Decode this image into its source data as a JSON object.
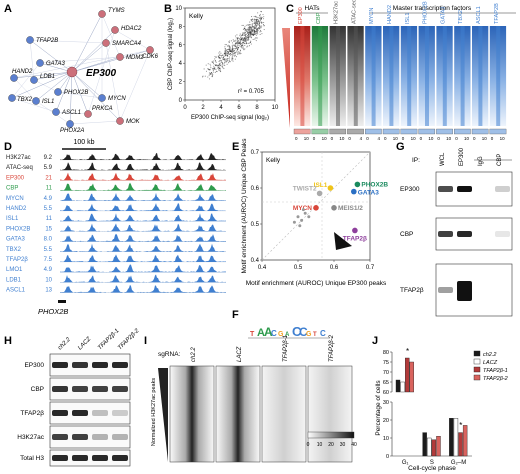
{
  "panel_letters": [
    "A",
    "B",
    "C",
    "D",
    "E",
    "F",
    "G",
    "H",
    "I",
    "J"
  ],
  "network": {
    "center": "EP300",
    "nodes": [
      {
        "id": "TYMS",
        "color": "#cc6f7a"
      },
      {
        "id": "HDAC2",
        "color": "#cc6f7a"
      },
      {
        "id": "SMARCA4",
        "color": "#cc6f7a"
      },
      {
        "id": "MDM2",
        "color": "#cc6f7a"
      },
      {
        "id": "CDK6",
        "color": "#cc6f7a"
      },
      {
        "id": "TFAP2B",
        "color": "#5b7fcf"
      },
      {
        "id": "GATA3",
        "color": "#5b7fcf"
      },
      {
        "id": "HAND2",
        "color": "#5b7fcf"
      },
      {
        "id": "LDB1",
        "color": "#5b7fcf"
      },
      {
        "id": "TBX2",
        "color": "#5b7fcf"
      },
      {
        "id": "ISL1",
        "color": "#5b7fcf"
      },
      {
        "id": "PHOX2B",
        "color": "#5b7fcf"
      },
      {
        "id": "ASCL1",
        "color": "#5b7fcf"
      },
      {
        "id": "PHOX2A",
        "color": "#5b7fcf"
      },
      {
        "id": "MYCN",
        "color": "#5b7fcf"
      },
      {
        "id": "PRKCA",
        "color": "#cc6f7a"
      },
      {
        "id": "MOK",
        "color": "#cc6f7a"
      }
    ]
  },
  "scatter_b": {
    "label": "Kelly",
    "xlabel": "EP300 ChIP-seq signal (log₂)",
    "ylabel": "CBP ChIP-seq signal (log₂)",
    "r2": "r² = 0.705",
    "xticks": [
      "0",
      "2",
      "4",
      "6",
      "8",
      "10"
    ],
    "yticks": [
      "0",
      "2",
      "4",
      "6",
      "8",
      "10"
    ]
  },
  "heatmap_c": {
    "group_hats": "HATs",
    "group_mtf": "Master transcription factors",
    "columns": [
      {
        "name": "EP300",
        "color": "#d9463a",
        "min": "0",
        "max": "10"
      },
      {
        "name": "CBP",
        "color": "#2f9b4d",
        "min": "0",
        "max": "10"
      },
      {
        "name": "H3K27ac",
        "color": "#555555",
        "min": "0",
        "max": "10"
      },
      {
        "name": "ATAC-seq",
        "color": "#555555",
        "min": "0",
        "max": "4"
      },
      {
        "name": "MYCN",
        "color": "#3f7fd0",
        "min": "0",
        "max": "4"
      },
      {
        "name": "HAND2",
        "color": "#3f7fd0",
        "min": "0",
        "max": "10"
      },
      {
        "name": "ISL1",
        "color": "#3f7fd0",
        "min": "0",
        "max": "10"
      },
      {
        "name": "PHOX2B",
        "color": "#3f7fd0",
        "min": "0",
        "max": "10"
      },
      {
        "name": "GATA3",
        "color": "#3f7fd0",
        "min": "0",
        "max": "10"
      },
      {
        "name": "TBX2",
        "color": "#3f7fd0",
        "min": "0",
        "max": "10"
      },
      {
        "name": "ASCL1",
        "color": "#3f7fd0",
        "min": "0",
        "max": "10"
      },
      {
        "name": "TFAP2B",
        "color": "#3f7fd0",
        "min": "0",
        "max": "10"
      }
    ]
  },
  "tracks_d": {
    "scale": "100 kb",
    "gene": "PHOX2B",
    "tracks": [
      {
        "name": "H3K27ac",
        "value": "9.2",
        "color": "#222222"
      },
      {
        "name": "ATAC-seq",
        "value": "5.9",
        "color": "#222222"
      },
      {
        "name": "EP300",
        "value": "21",
        "color": "#d9463a"
      },
      {
        "name": "CBP",
        "value": "11",
        "color": "#2f9b4d"
      },
      {
        "name": "MYCN",
        "value": "4.9",
        "color": "#3f7fd0"
      },
      {
        "name": "HAND2",
        "value": "5.5",
        "color": "#3f7fd0"
      },
      {
        "name": "ISL1",
        "value": "11",
        "color": "#3f7fd0"
      },
      {
        "name": "PHOX2B",
        "value": "15",
        "color": "#3f7fd0"
      },
      {
        "name": "GATA3",
        "value": "8.0",
        "color": "#3f7fd0"
      },
      {
        "name": "TBX2",
        "value": "5.5",
        "color": "#3f7fd0"
      },
      {
        "name": "TFAP2β",
        "value": "7.5",
        "color": "#3f7fd0"
      },
      {
        "name": "LMO1",
        "value": "4.9",
        "color": "#3f7fd0"
      },
      {
        "name": "LDB1",
        "value": "10",
        "color": "#3f7fd0"
      },
      {
        "name": "ASCL1",
        "value": "13",
        "color": "#3f7fd0"
      }
    ]
  },
  "chart_data": [
    {
      "type": "scatter",
      "panel": "E",
      "title": "Kelly",
      "xlabel": "Motif enrichment (AUROC) Unique EP300 peaks",
      "ylabel": "Motif enrichment (AUROC) Unique CBP Peaks",
      "xlim": [
        0.4,
        0.7
      ],
      "ylim": [
        0.4,
        0.7
      ],
      "xticks": [
        "0.4",
        "0.5",
        "0.6",
        "0.7"
      ],
      "yticks": [
        "0.4",
        "0.5",
        "0.6",
        "0.7"
      ],
      "points": [
        {
          "label": "PHOX2B",
          "x": 0.665,
          "y": 0.61,
          "color": "#1a8a5e"
        },
        {
          "label": "GATA3",
          "x": 0.655,
          "y": 0.59,
          "color": "#2a6fc4"
        },
        {
          "label": "ISL1",
          "x": 0.59,
          "y": 0.6,
          "color": "#f0c419"
        },
        {
          "label": "TWIST2",
          "x": 0.56,
          "y": 0.585,
          "color": "#aaaaaa"
        },
        {
          "label": "MYCN",
          "x": 0.55,
          "y": 0.545,
          "color": "#d9463a"
        },
        {
          "label": "MEIS1/2",
          "x": 0.6,
          "y": 0.545,
          "color": "#888888"
        },
        {
          "label": "TFAP2β",
          "x": 0.658,
          "y": 0.482,
          "color": "#8e3f9c"
        },
        {
          "label": "",
          "x": 0.5,
          "y": 0.52,
          "color": "#999999"
        },
        {
          "label": "",
          "x": 0.51,
          "y": 0.51,
          "color": "#999999"
        },
        {
          "label": "",
          "x": 0.52,
          "y": 0.53,
          "color": "#999999"
        },
        {
          "label": "",
          "x": 0.49,
          "y": 0.505,
          "color": "#999999"
        },
        {
          "label": "",
          "x": 0.53,
          "y": 0.52,
          "color": "#999999"
        },
        {
          "label": "",
          "x": 0.515,
          "y": 0.54,
          "color": "#999999"
        },
        {
          "label": "",
          "x": 0.505,
          "y": 0.495,
          "color": "#999999"
        }
      ]
    },
    {
      "type": "bar",
      "panel": "J",
      "ylabel": "Percentage of cells",
      "xlabel": "Cell-cycle phase",
      "categories": [
        "G₁",
        "S",
        "G₂–M"
      ],
      "yticks_upper": [
        "60",
        "65",
        "70",
        "75",
        "80"
      ],
      "yticks_lower": [
        "0",
        "10",
        "20",
        "30"
      ],
      "series": [
        {
          "name": "ch2.2",
          "color": "#1b1b1b",
          "values": [
            66,
            13,
            21
          ]
        },
        {
          "name": "LACZ",
          "color": "#ffffff",
          "values": [
            65,
            10,
            21
          ]
        },
        {
          "name": "TFAP2β-1",
          "color": "#b23a3a",
          "values": [
            77,
            9,
            13
          ]
        },
        {
          "name": "TFAP2β-2",
          "color": "#d9635e",
          "values": [
            75,
            11,
            17
          ]
        }
      ],
      "significance": "*"
    }
  ],
  "motif_f": {
    "letters": [
      "T",
      "A",
      "A",
      "C",
      "G",
      "A",
      "C",
      "C",
      "G",
      "T",
      "C"
    ]
  },
  "blot_g": {
    "ip_label": "IP:",
    "columns": [
      "WCL",
      "EP300",
      "IgG",
      "CBP"
    ],
    "rows": [
      "EP300",
      "CBP",
      "TFAP2β"
    ]
  },
  "blot_h": {
    "columns": [
      "ch2.2",
      "LACZ",
      "TFAP2β-1",
      "TFAP2β-2"
    ],
    "rows": [
      "EP300",
      "CBP",
      "TFAP2β",
      "H3K27ac",
      "Total H3"
    ]
  },
  "heatmap_i": {
    "sgrna_label": "sgRNA:",
    "columns": [
      "ch2.2",
      "LACZ",
      "TFAP2β-1",
      "TFAP2β-2"
    ],
    "ylabel": "Normalized H3K27ac peaks",
    "colorbar_ticks": [
      "0",
      "10",
      "20",
      "30",
      "40"
    ]
  }
}
